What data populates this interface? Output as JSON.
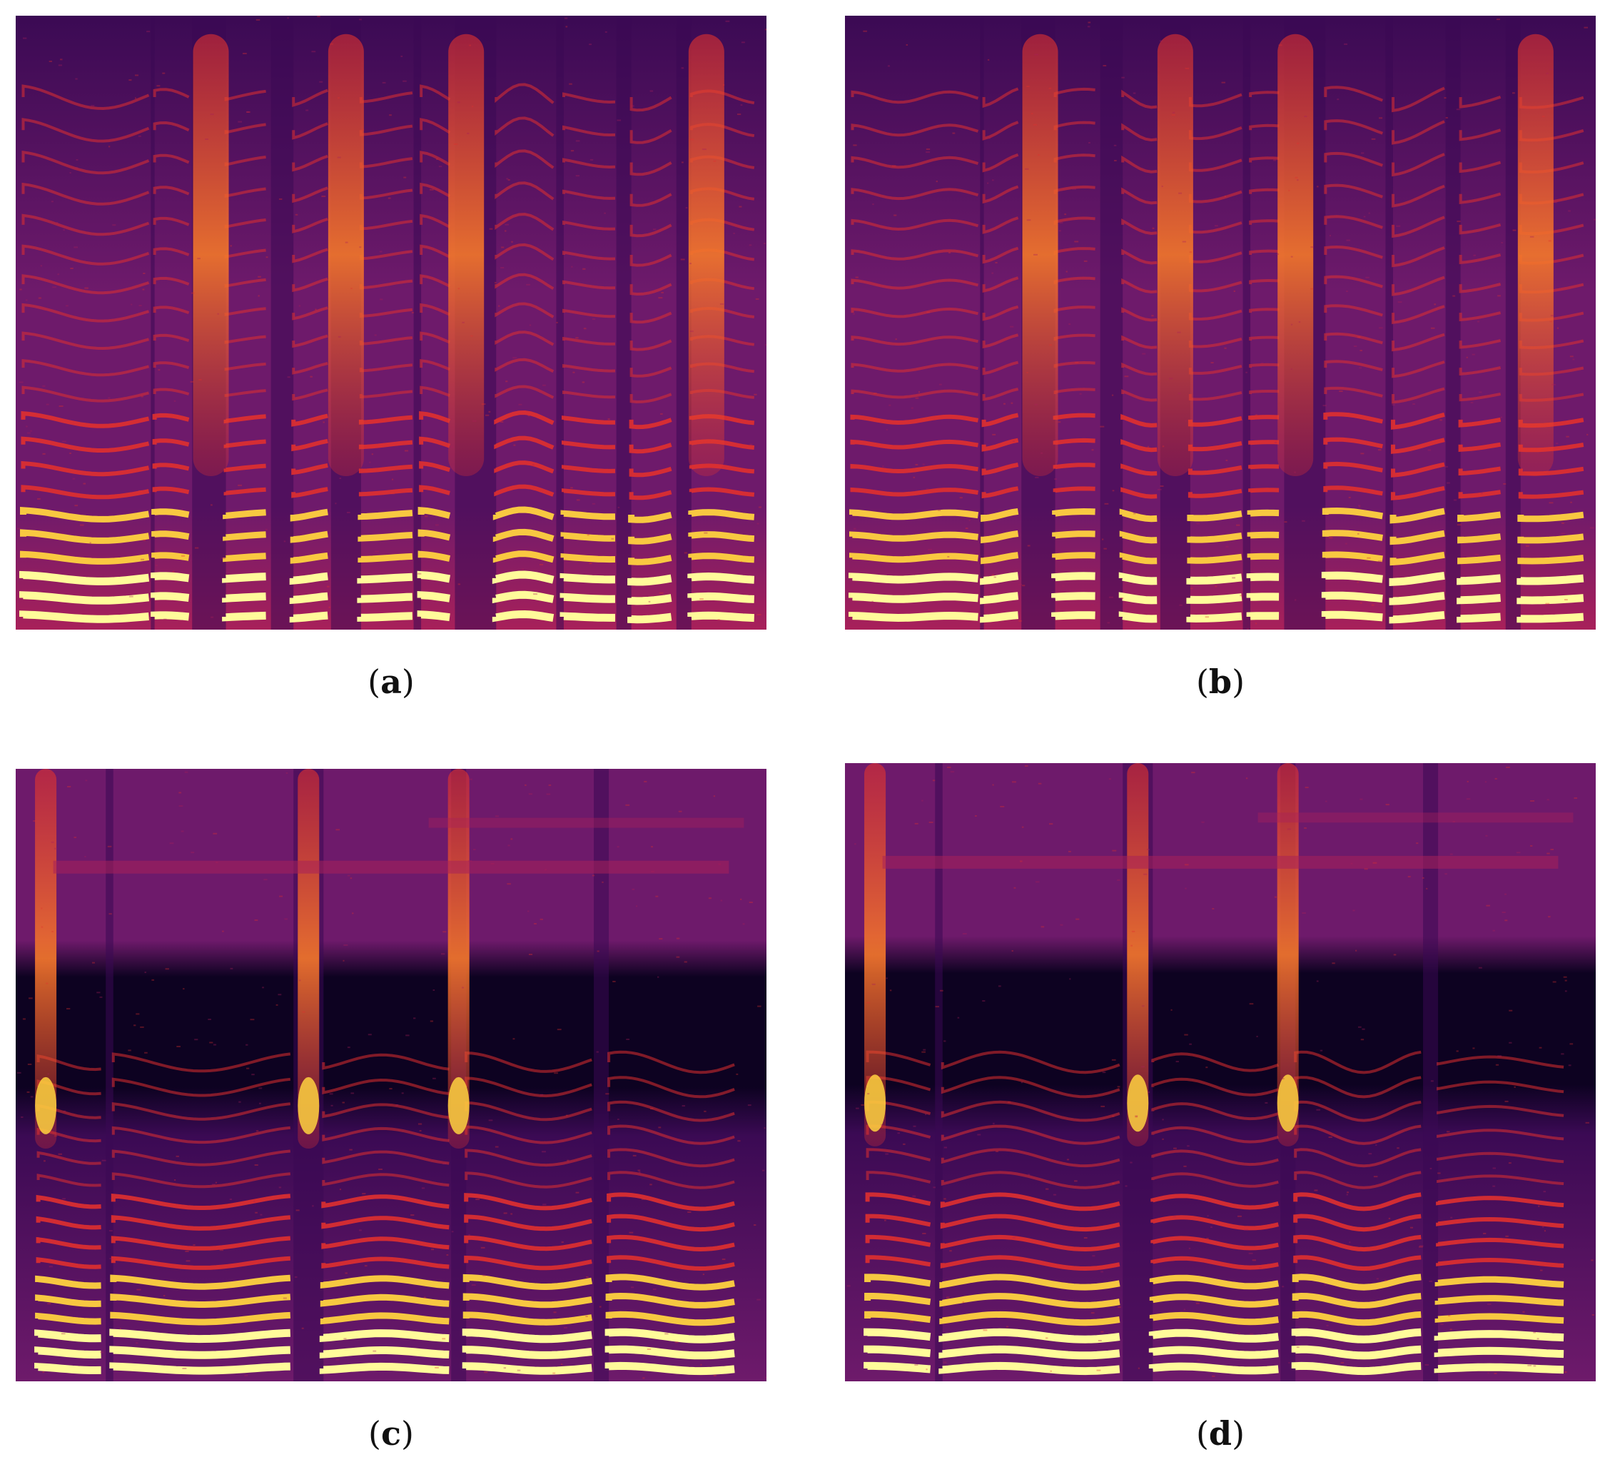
{
  "panels": [
    {
      "id": "a",
      "label": "a",
      "style": "ab"
    },
    {
      "id": "b",
      "label": "b",
      "style": "ab"
    },
    {
      "id": "c",
      "label": "c",
      "style": "cd"
    },
    {
      "id": "d",
      "label": "d",
      "style": "cd"
    }
  ],
  "colors": {
    "background": "#ffffff",
    "colormap": [
      "#0d0221",
      "#3b0a54",
      "#6e1a6b",
      "#a8205a",
      "#e0302f",
      "#f5782a",
      "#ffd23f",
      "#fffb9a"
    ]
  }
}
